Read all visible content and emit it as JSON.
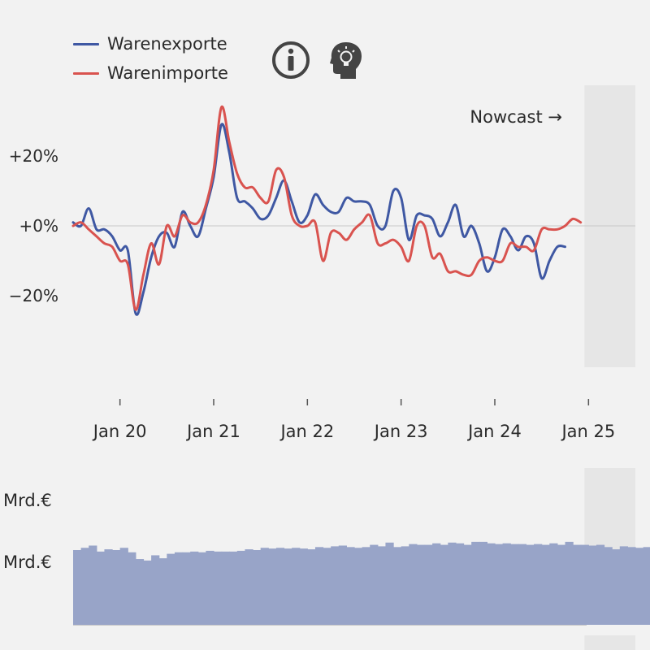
{
  "legend": {
    "items": [
      {
        "label": "Warenexporte",
        "color": "#3f58a3"
      },
      {
        "label": "Warenimporte",
        "color": "#d9534f"
      }
    ]
  },
  "icons": [
    "info-icon",
    "insight-head-icon"
  ],
  "nowcast_label": "Nowcast →",
  "bar_panel": {
    "label_top": "Mrd.€",
    "label_mid": "Mrd.€",
    "bar_color": "#98a4c8"
  },
  "chart_data": [
    {
      "type": "line",
      "ylim": [
        -45,
        40
      ],
      "yticks": [
        20,
        0,
        -20
      ],
      "ytick_labels": [
        "+20%",
        "+0%",
        "−20%"
      ],
      "xtick_labels": [
        "Jan 20",
        "Jan 21",
        "Jan 22",
        "Jan 23",
        "Jan 24",
        "Jan 25"
      ],
      "xrange": [
        "2019-07",
        "2025-06"
      ],
      "grid": false,
      "zero_line": true,
      "nowcast_from": "2025-01",
      "series": [
        {
          "name": "Warenexporte",
          "color": "#3f58a3",
          "values": [
            [
              "2019-07",
              1
            ],
            [
              "2019-08",
              0
            ],
            [
              "2019-09",
              5
            ],
            [
              "2019-10",
              -1
            ],
            [
              "2019-11",
              -1
            ],
            [
              "2019-12",
              -3
            ],
            [
              "2020-01",
              -7
            ],
            [
              "2020-02",
              -7
            ],
            [
              "2020-03",
              -25
            ],
            [
              "2020-04",
              -19
            ],
            [
              "2020-05",
              -9
            ],
            [
              "2020-06",
              -3
            ],
            [
              "2020-07",
              -2
            ],
            [
              "2020-08",
              -6
            ],
            [
              "2020-09",
              4
            ],
            [
              "2020-10",
              0
            ],
            [
              "2020-11",
              -3
            ],
            [
              "2020-12",
              5
            ],
            [
              "2021-01",
              14
            ],
            [
              "2021-02",
              29
            ],
            [
              "2021-03",
              21
            ],
            [
              "2021-04",
              8
            ],
            [
              "2021-05",
              7
            ],
            [
              "2021-06",
              5
            ],
            [
              "2021-07",
              2
            ],
            [
              "2021-08",
              3
            ],
            [
              "2021-09",
              8
            ],
            [
              "2021-10",
              13
            ],
            [
              "2021-11",
              7
            ],
            [
              "2021-12",
              1
            ],
            [
              "2022-01",
              3
            ],
            [
              "2022-02",
              9
            ],
            [
              "2022-03",
              6
            ],
            [
              "2022-04",
              4
            ],
            [
              "2022-05",
              4
            ],
            [
              "2022-06",
              8
            ],
            [
              "2022-07",
              7
            ],
            [
              "2022-08",
              7
            ],
            [
              "2022-09",
              6
            ],
            [
              "2022-10",
              0
            ],
            [
              "2022-11",
              0
            ],
            [
              "2022-12",
              10
            ],
            [
              "2023-01",
              8
            ],
            [
              "2023-02",
              -4
            ],
            [
              "2023-03",
              3
            ],
            [
              "2023-04",
              3
            ],
            [
              "2023-05",
              2
            ],
            [
              "2023-06",
              -3
            ],
            [
              "2023-07",
              1
            ],
            [
              "2023-08",
              6
            ],
            [
              "2023-09",
              -3
            ],
            [
              "2023-10",
              0
            ],
            [
              "2023-11",
              -5
            ],
            [
              "2023-12",
              -13
            ],
            [
              "2024-01",
              -9
            ],
            [
              "2024-02",
              -1
            ],
            [
              "2024-03",
              -3
            ],
            [
              "2024-04",
              -7
            ],
            [
              "2024-05",
              -3
            ],
            [
              "2024-06",
              -5
            ],
            [
              "2024-07",
              -15
            ],
            [
              "2024-08",
              -10
            ],
            [
              "2024-09",
              -6
            ],
            [
              "2024-10",
              -6
            ]
          ]
        },
        {
          "name": "Warenimporte",
          "color": "#d9534f",
          "values": [
            [
              "2019-07",
              0
            ],
            [
              "2019-08",
              1
            ],
            [
              "2019-09",
              -1
            ],
            [
              "2019-10",
              -3
            ],
            [
              "2019-11",
              -5
            ],
            [
              "2019-12",
              -6
            ],
            [
              "2020-01",
              -10
            ],
            [
              "2020-02",
              -11
            ],
            [
              "2020-03",
              -24
            ],
            [
              "2020-04",
              -14
            ],
            [
              "2020-05",
              -5
            ],
            [
              "2020-06",
              -11
            ],
            [
              "2020-07",
              0
            ],
            [
              "2020-08",
              -3
            ],
            [
              "2020-09",
              3
            ],
            [
              "2020-10",
              1
            ],
            [
              "2020-11",
              1
            ],
            [
              "2020-12",
              6
            ],
            [
              "2021-01",
              16
            ],
            [
              "2021-02",
              34
            ],
            [
              "2021-03",
              24
            ],
            [
              "2021-04",
              15
            ],
            [
              "2021-05",
              11
            ],
            [
              "2021-06",
              11
            ],
            [
              "2021-07",
              8
            ],
            [
              "2021-08",
              7
            ],
            [
              "2021-09",
              16
            ],
            [
              "2021-10",
              14
            ],
            [
              "2021-11",
              3
            ],
            [
              "2021-12",
              0
            ],
            [
              "2022-01",
              0
            ],
            [
              "2022-02",
              1
            ],
            [
              "2022-03",
              -10
            ],
            [
              "2022-04",
              -2
            ],
            [
              "2022-05",
              -2
            ],
            [
              "2022-06",
              -4
            ],
            [
              "2022-07",
              -1
            ],
            [
              "2022-08",
              1
            ],
            [
              "2022-09",
              3
            ],
            [
              "2022-10",
              -5
            ],
            [
              "2022-11",
              -5
            ],
            [
              "2022-12",
              -4
            ],
            [
              "2023-01",
              -6
            ],
            [
              "2023-02",
              -10
            ],
            [
              "2023-03",
              0
            ],
            [
              "2023-04",
              0
            ],
            [
              "2023-05",
              -9
            ],
            [
              "2023-06",
              -8
            ],
            [
              "2023-07",
              -13
            ],
            [
              "2023-08",
              -13
            ],
            [
              "2023-09",
              -14
            ],
            [
              "2023-10",
              -14
            ],
            [
              "2023-11",
              -10
            ],
            [
              "2023-12",
              -9
            ],
            [
              "2024-01",
              -10
            ],
            [
              "2024-02",
              -10
            ],
            [
              "2024-03",
              -5
            ],
            [
              "2024-04",
              -6
            ],
            [
              "2024-05",
              -6
            ],
            [
              "2024-06",
              -7
            ],
            [
              "2024-07",
              -1
            ],
            [
              "2024-08",
              -1
            ],
            [
              "2024-09",
              -1
            ],
            [
              "2024-10",
              0
            ],
            [
              "2024-11",
              2
            ],
            [
              "2024-12",
              1
            ]
          ]
        }
      ]
    },
    {
      "type": "bar",
      "ylabel": "Mrd.€",
      "xrange": [
        "2019-07",
        "2025-06"
      ],
      "values_relative": [
        1.0,
        1.03,
        1.06,
        0.98,
        1.01,
        1.0,
        1.03,
        0.97,
        0.88,
        0.86,
        0.93,
        0.89,
        0.95,
        0.97,
        0.97,
        0.98,
        0.97,
        0.99,
        0.98,
        0.98,
        0.98,
        0.99,
        1.01,
        1.0,
        1.03,
        1.02,
        1.03,
        1.02,
        1.03,
        1.02,
        1.01,
        1.04,
        1.03,
        1.05,
        1.06,
        1.04,
        1.03,
        1.04,
        1.07,
        1.05,
        1.1,
        1.04,
        1.05,
        1.08,
        1.07,
        1.07,
        1.09,
        1.07,
        1.1,
        1.09,
        1.07,
        1.11,
        1.11,
        1.09,
        1.08,
        1.09,
        1.08,
        1.08,
        1.07,
        1.08,
        1.07,
        1.09,
        1.07,
        1.11,
        1.07,
        1.07,
        1.06,
        1.07,
        1.04,
        1.01,
        1.05,
        1.04,
        1.03,
        1.04,
        1.03,
        1.01,
        1.01
      ]
    }
  ]
}
